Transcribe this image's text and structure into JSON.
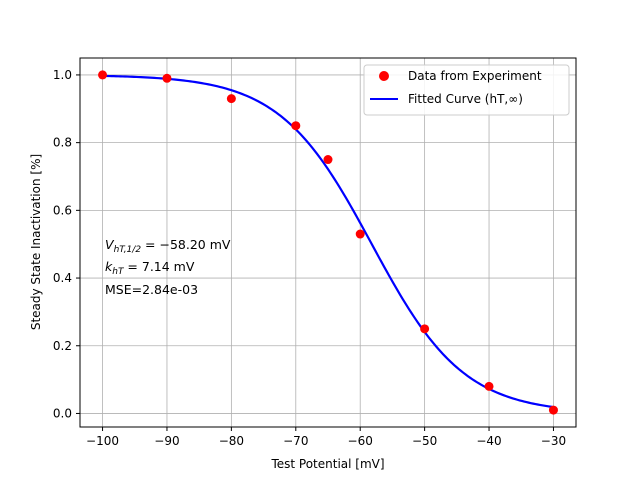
{
  "chart_data": {
    "type": "scatter",
    "title": "",
    "xlabel": "Test Potential [mV]",
    "ylabel": "Steady State Inactivation [%]",
    "xlim": [
      -103.5,
      -26.5
    ],
    "ylim": [
      -0.04,
      1.05
    ],
    "xticks": [
      -100,
      -90,
      -80,
      -70,
      -60,
      -50,
      -40,
      -30
    ],
    "yticks": [
      0.0,
      0.2,
      0.4,
      0.6,
      0.8,
      1.0
    ],
    "xtick_labels": [
      "−100",
      "−90",
      "−80",
      "−70",
      "−60",
      "−50",
      "−40",
      "−30"
    ],
    "ytick_labels": [
      "0.0",
      "0.2",
      "0.4",
      "0.6",
      "0.8",
      "1.0"
    ],
    "grid": true,
    "legend_position": "top-right",
    "series": [
      {
        "name": "Data from Experiment",
        "kind": "scatter",
        "color": "#ff0000",
        "x": [
          -100,
          -90,
          -80,
          -70,
          -65,
          -60,
          -50,
          -40,
          -30
        ],
        "y": [
          1.0,
          0.99,
          0.93,
          0.85,
          0.75,
          0.53,
          0.25,
          0.08,
          0.01
        ]
      },
      {
        "name": "Fitted Curve (hT,∞)",
        "kind": "line",
        "color": "#0000ff",
        "model": "boltzmann",
        "v_half": -58.2,
        "k": 7.14,
        "x_range": [
          -100,
          -30
        ]
      }
    ],
    "annotation": {
      "v_half_symbol": "V",
      "v_half_subscript": "hT,1/2",
      "v_half_text": " = −58.20 mV",
      "k_symbol": "k",
      "k_subscript": "hT",
      "k_text": " = 7.14 mV",
      "mse_text": "MSE=2.84e-03"
    }
  }
}
